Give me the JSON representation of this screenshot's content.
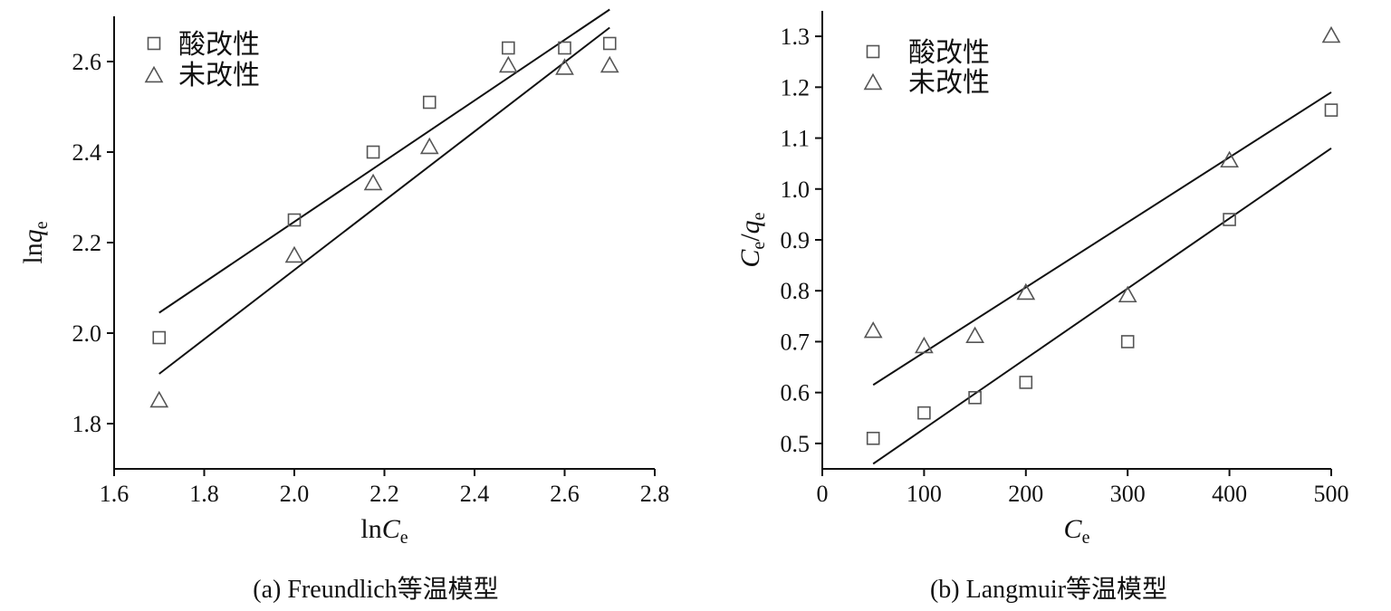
{
  "chart_data": [
    {
      "type": "scatter",
      "caption": "(a) Freundlich等温模型",
      "xlabel": {
        "main": "ln",
        "italic": "C",
        "sub": "e"
      },
      "ylabel": {
        "main": "ln",
        "italic": "q",
        "sub": "e"
      },
      "xlim": [
        1.6,
        2.8
      ],
      "ylim": [
        1.7,
        2.7
      ],
      "xticks": [
        "1.6",
        "1.8",
        "2.0",
        "2.2",
        "2.4",
        "2.6",
        "2.8"
      ],
      "yticks": [
        "1.8",
        "2.0",
        "2.2",
        "2.4",
        "2.6"
      ],
      "legend_position": "top-left",
      "series": [
        {
          "name": "酸改性",
          "marker": "square",
          "x": [
            1.7,
            2.0,
            2.175,
            2.3,
            2.475,
            2.6,
            2.7
          ],
          "y": [
            1.99,
            2.25,
            2.4,
            2.51,
            2.63,
            2.63,
            2.64
          ],
          "fit": {
            "x": [
              1.7,
              2.7
            ],
            "y": [
              2.045,
              2.715
            ]
          }
        },
        {
          "name": "未改性",
          "marker": "triangle",
          "x": [
            1.7,
            2.0,
            2.175,
            2.3,
            2.475,
            2.6,
            2.7
          ],
          "y": [
            1.85,
            2.17,
            2.33,
            2.41,
            2.59,
            2.585,
            2.59
          ],
          "fit": {
            "x": [
              1.7,
              2.7
            ],
            "y": [
              1.91,
              2.675
            ]
          }
        }
      ]
    },
    {
      "type": "scatter",
      "caption": "(b) Langmuir等温模型",
      "xlabel": {
        "main": "",
        "italic": "C",
        "sub": "e"
      },
      "ylabel": {
        "main": "",
        "italic": "C",
        "sub": "e",
        "slash": "/",
        "italic2": "q",
        "sub2": "e"
      },
      "xlim": [
        0,
        500
      ],
      "ylim": [
        0.45,
        1.35
      ],
      "xticks": [
        "0",
        "100",
        "200",
        "300",
        "400",
        "500"
      ],
      "yticks": [
        "0.5",
        "0.6",
        "0.7",
        "0.8",
        "0.9",
        "1.0",
        "1.1",
        "1.2",
        "1.3"
      ],
      "legend_position": "top-left",
      "series": [
        {
          "name": "酸改性",
          "marker": "square",
          "x": [
            50,
            100,
            150,
            200,
            300,
            400,
            500
          ],
          "y": [
            0.51,
            0.56,
            0.59,
            0.62,
            0.7,
            0.94,
            1.155
          ],
          "fit": {
            "x": [
              50,
              500
            ],
            "y": [
              0.46,
              1.08
            ]
          }
        },
        {
          "name": "未改性",
          "marker": "triangle",
          "x": [
            50,
            100,
            150,
            200,
            300,
            400,
            500
          ],
          "y": [
            0.72,
            0.69,
            0.71,
            0.795,
            0.79,
            1.055,
            1.3
          ],
          "fit": {
            "x": [
              50,
              500
            ],
            "y": [
              0.615,
              1.19
            ]
          }
        }
      ]
    }
  ]
}
